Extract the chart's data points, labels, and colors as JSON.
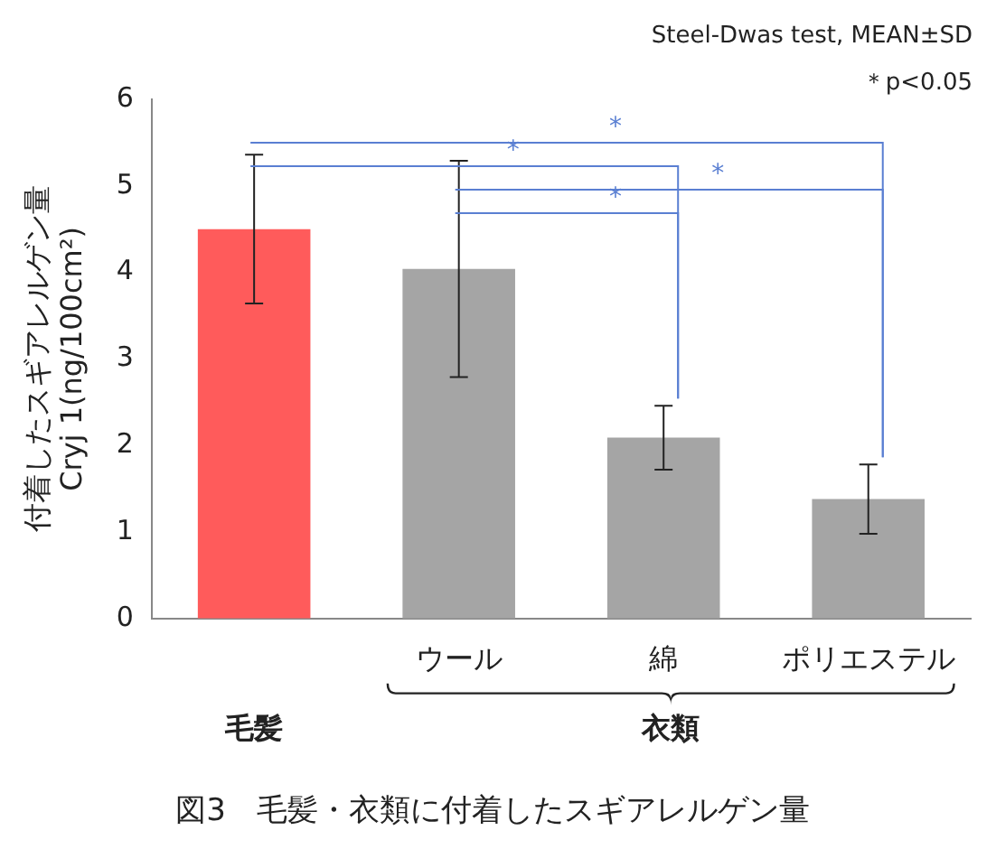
{
  "chart_data": {
    "type": "bar",
    "title": "図3　毛髪・衣類に付着したスギアレルゲン量",
    "ylabel": "付着したスギアレルゲン量\nCryj 1(ng/100cm²)",
    "categories": [
      null,
      "ウール",
      "綿",
      "ポリエステル"
    ],
    "values": [
      4.5,
      4.04,
      2.09,
      1.38
    ],
    "colors": [
      "#ff5b5b",
      "#a5a5a5",
      "#a5a5a5",
      "#a5a5a5"
    ],
    "errors": [
      0.86,
      1.25,
      0.37,
      0.4
    ],
    "ylim": [
      0,
      6
    ],
    "yticks": [
      0,
      1,
      2,
      3,
      4,
      5,
      6
    ],
    "grid": false,
    "legend": false,
    "annotations": [
      "Steel-Dwas test, MEAN±SD",
      "＊p<0.05",
      "衣類",
      "*",
      "*",
      "*",
      "*",
      "毛髪"
    ]
  }
}
